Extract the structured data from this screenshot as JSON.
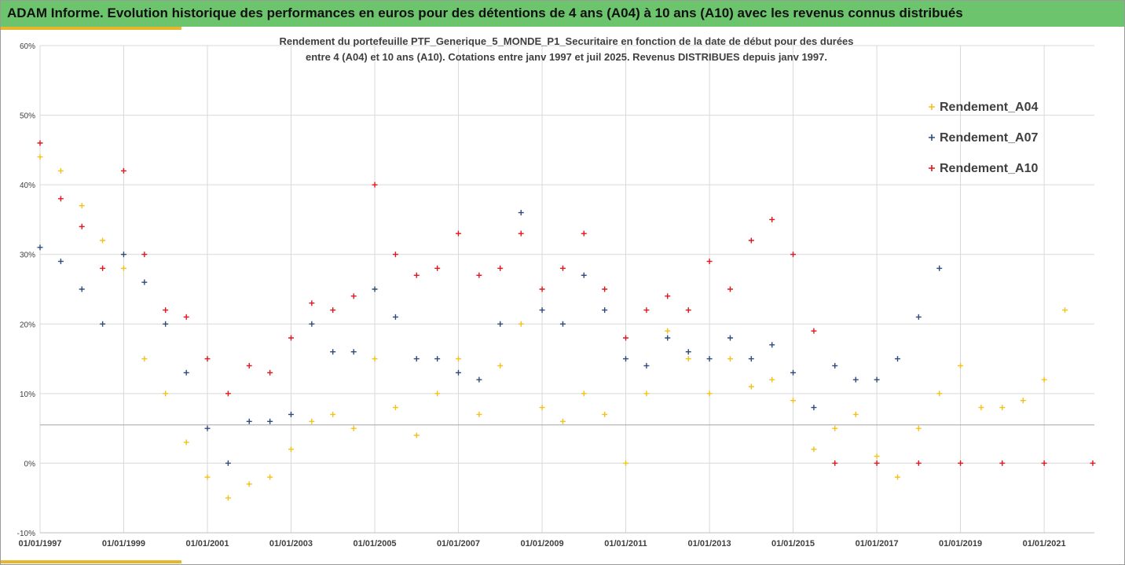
{
  "header": {
    "title": "ADAM Informe. Evolution historique des performances en euros pour des détentions de 4 ans (A04) à 10 ans (A10) avec les revenus connus distribués"
  },
  "colors": {
    "header_bar": "#6cc46c",
    "accent": "#e8b62a",
    "A04": "#f2c21a",
    "A07": "#2e4a7a",
    "A10": "#e0161e",
    "grid": "#d9d9d9",
    "reference_line": "#a6a6a6"
  },
  "chart_data": {
    "type": "scatter",
    "marker": "plus",
    "title_line1": "Rendement du portefeuille PTF_Generique_5_MONDE_P1_Securitaire  en fonction de la date de début pour des durées",
    "title_line2": "entre 4 (A04) et 10 ans (A10). Cotations  entre janv 1997 et juil 2025. Revenus DISTRIBUES depuis janv 1997.",
    "xlabel": "",
    "ylabel": "",
    "x_range": [
      "1997-01-01",
      "2022-03-15"
    ],
    "x_ticks": [
      "01/01/1997",
      "01/01/1999",
      "01/01/2001",
      "01/01/2003",
      "01/01/2005",
      "01/01/2007",
      "01/01/2009",
      "01/01/2011",
      "01/01/2013",
      "01/01/2015",
      "01/01/2017",
      "01/01/2019",
      "01/01/2021"
    ],
    "ylim": [
      -0.1,
      0.6
    ],
    "y_ticks": [
      "-10%",
      "0%",
      "10%",
      "20%",
      "30%",
      "40%",
      "50%",
      "60%"
    ],
    "grid": "vertical and horizontal",
    "legend_position": "top-right",
    "reference_line_y": 0.055,
    "series": [
      {
        "name": "Rendement_A04",
        "color_key": "A04",
        "x": [
          "1997-01",
          "1997-07",
          "1998-01",
          "1998-07",
          "1999-01",
          "1999-07",
          "2000-01",
          "2000-07",
          "2001-01",
          "2001-07",
          "2002-01",
          "2002-07",
          "2003-01",
          "2003-07",
          "2004-01",
          "2004-07",
          "2005-01",
          "2005-07",
          "2006-01",
          "2006-07",
          "2007-01",
          "2007-07",
          "2008-01",
          "2008-07",
          "2009-01",
          "2009-07",
          "2010-01",
          "2010-07",
          "2011-01",
          "2011-07",
          "2012-01",
          "2012-07",
          "2013-01",
          "2013-07",
          "2014-01",
          "2014-07",
          "2015-01",
          "2015-07",
          "2016-01",
          "2016-07",
          "2017-01",
          "2017-07",
          "2018-01",
          "2018-07",
          "2019-01",
          "2019-07",
          "2020-01",
          "2020-07",
          "2021-01",
          "2021-07"
        ],
        "y": [
          0.44,
          0.42,
          0.37,
          0.32,
          0.28,
          0.15,
          0.1,
          0.03,
          -0.02,
          -0.05,
          -0.03,
          -0.02,
          0.02,
          0.06,
          0.07,
          0.05,
          0.15,
          0.08,
          0.04,
          0.1,
          0.15,
          0.07,
          0.14,
          0.2,
          0.08,
          0.06,
          0.1,
          0.07,
          0.0,
          0.1,
          0.19,
          0.15,
          0.1,
          0.15,
          0.11,
          0.12,
          0.09,
          0.02,
          0.05,
          0.07,
          0.01,
          -0.02,
          0.05,
          0.1,
          0.14,
          0.08,
          0.08,
          0.09,
          0.12,
          0.22
        ]
      },
      {
        "name": "Rendement_A07",
        "color_key": "A07",
        "x": [
          "1997-01",
          "1997-07",
          "1998-01",
          "1998-07",
          "1999-01",
          "1999-07",
          "2000-01",
          "2000-07",
          "2001-01",
          "2001-07",
          "2002-01",
          "2002-07",
          "2003-01",
          "2003-07",
          "2004-01",
          "2004-07",
          "2005-01",
          "2005-07",
          "2006-01",
          "2006-07",
          "2007-01",
          "2007-07",
          "2008-01",
          "2008-07",
          "2009-01",
          "2009-07",
          "2010-01",
          "2010-07",
          "2011-01",
          "2011-07",
          "2012-01",
          "2012-07",
          "2013-01",
          "2013-07",
          "2014-01",
          "2014-07",
          "2015-01",
          "2015-07",
          "2016-01",
          "2016-07",
          "2017-01",
          "2017-07",
          "2018-01",
          "2018-07"
        ],
        "y": [
          0.31,
          0.29,
          0.25,
          0.2,
          0.3,
          0.26,
          0.2,
          0.13,
          0.05,
          0.0,
          0.06,
          0.06,
          0.07,
          0.2,
          0.16,
          0.16,
          0.25,
          0.21,
          0.15,
          0.15,
          0.13,
          0.12,
          0.2,
          0.36,
          0.22,
          0.2,
          0.27,
          0.22,
          0.15,
          0.14,
          0.18,
          0.16,
          0.15,
          0.18,
          0.15,
          0.17,
          0.13,
          0.08,
          0.14,
          0.12,
          0.12,
          0.15,
          0.21,
          0.28
        ]
      },
      {
        "name": "Rendement_A10",
        "color_key": "A10",
        "x": [
          "1997-01",
          "1997-07",
          "1998-01",
          "1998-07",
          "1999-01",
          "1999-07",
          "2000-01",
          "2000-07",
          "2001-01",
          "2001-07",
          "2002-01",
          "2002-07",
          "2003-01",
          "2003-07",
          "2004-01",
          "2004-07",
          "2005-01",
          "2005-07",
          "2006-01",
          "2006-07",
          "2007-01",
          "2007-07",
          "2008-01",
          "2008-07",
          "2009-01",
          "2009-07",
          "2010-01",
          "2010-07",
          "2011-01",
          "2011-07",
          "2012-01",
          "2012-07",
          "2013-01",
          "2013-07",
          "2014-01",
          "2014-07",
          "2015-01",
          "2015-07",
          "2016-01",
          "2017-01",
          "2018-01",
          "2019-01",
          "2020-01",
          "2021-01",
          "2022-03"
        ],
        "y": [
          0.46,
          0.38,
          0.34,
          0.28,
          0.42,
          0.3,
          0.22,
          0.21,
          0.15,
          0.1,
          0.14,
          0.13,
          0.18,
          0.23,
          0.22,
          0.24,
          0.4,
          0.3,
          0.27,
          0.28,
          0.33,
          0.27,
          0.28,
          0.33,
          0.25,
          0.28,
          0.33,
          0.25,
          0.18,
          0.22,
          0.24,
          0.22,
          0.29,
          0.25,
          0.32,
          0.35,
          0.3,
          0.19,
          0.0,
          0.0,
          0.0,
          0.0,
          0.0,
          0.0,
          0.0
        ]
      }
    ]
  }
}
